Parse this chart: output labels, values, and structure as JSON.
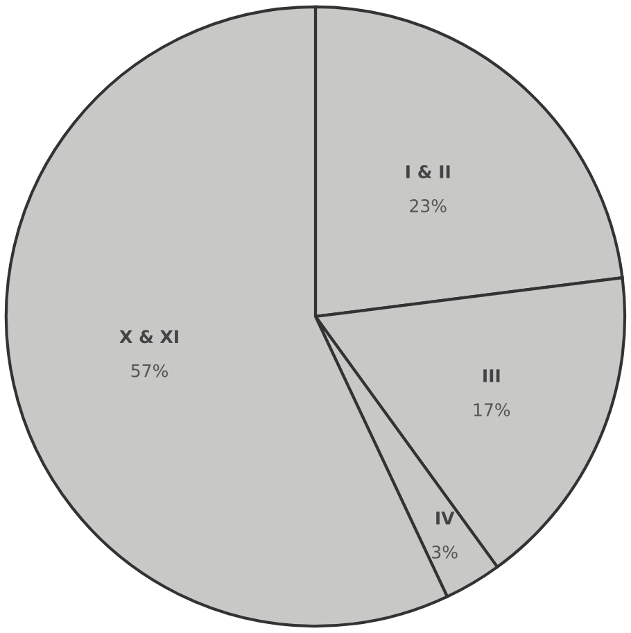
{
  "chart_data": {
    "type": "pie",
    "categories": [
      "I & II",
      "III",
      "IV",
      "X & XI"
    ],
    "values": [
      23,
      17,
      3,
      57
    ],
    "colors": [
      "#c8c8c6",
      "#c8c8c6",
      "#c8c8c6",
      "#c8c8c6"
    ],
    "value_labels": [
      "23%",
      "17%",
      "3%",
      "57%"
    ]
  }
}
